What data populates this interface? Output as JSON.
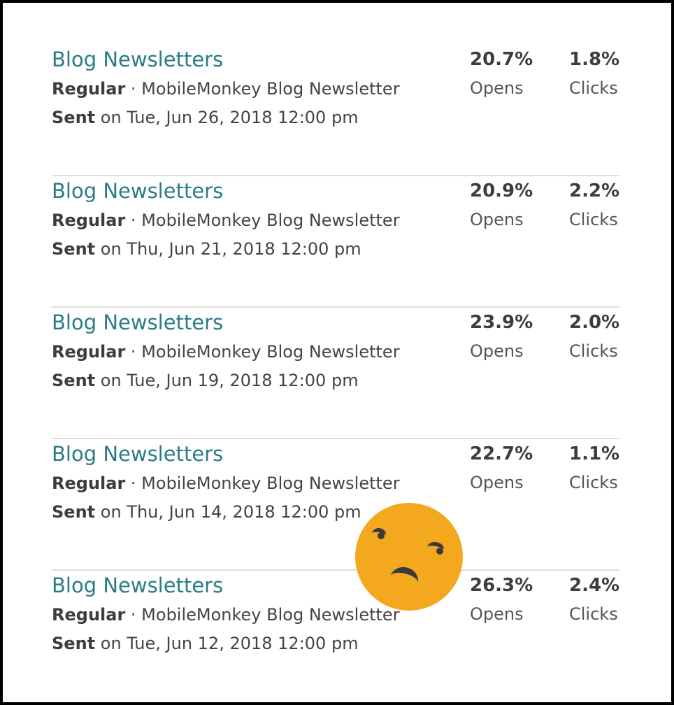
{
  "campaigns": [
    {
      "title": "Blog Newsletters",
      "type": "Regular",
      "separator": " · ",
      "list_name": "MobileMonkey Blog Newsletter",
      "sent_label": "Sent",
      "sent_date": " on Tue, Jun 26, 2018 12:00 pm",
      "opens_value": "20.7%",
      "opens_label": "Opens",
      "clicks_value": "1.8%",
      "clicks_label": "Clicks"
    },
    {
      "title": "Blog Newsletters",
      "type": "Regular",
      "separator": " · ",
      "list_name": "MobileMonkey Blog Newsletter",
      "sent_label": "Sent",
      "sent_date": " on Thu, Jun 21, 2018 12:00 pm",
      "opens_value": "20.9%",
      "opens_label": "Opens",
      "clicks_value": "2.2%",
      "clicks_label": "Clicks"
    },
    {
      "title": "Blog Newsletters",
      "type": "Regular",
      "separator": " · ",
      "list_name": "MobileMonkey Blog Newsletter",
      "sent_label": "Sent",
      "sent_date": " on Tue, Jun 19, 2018 12:00 pm",
      "opens_value": "23.9%",
      "opens_label": "Opens",
      "clicks_value": "2.0%",
      "clicks_label": "Clicks"
    },
    {
      "title": "Blog Newsletters",
      "type": "Regular",
      "separator": " · ",
      "list_name": "MobileMonkey Blog Newsletter",
      "sent_label": "Sent",
      "sent_date": " on Thu, Jun 14, 2018 12:00 pm",
      "opens_value": "22.7%",
      "opens_label": "Opens",
      "clicks_value": "1.1%",
      "clicks_label": "Clicks"
    },
    {
      "title": "Blog Newsletters",
      "type": "Regular",
      "separator": " · ",
      "list_name": "MobileMonkey Blog Newsletter",
      "sent_label": "Sent",
      "sent_date": " on Tue, Jun 12, 2018 12:00 pm",
      "opens_value": "26.3%",
      "opens_label": "Opens",
      "clicks_value": "2.4%",
      "clicks_label": "Clicks"
    }
  ],
  "overlay": {
    "icon": "frowning-face-emoji-icon",
    "color": "#f3a81d"
  },
  "colors": {
    "title_link": "#2b7b87",
    "text": "#444444",
    "divider": "#dddddd",
    "frame": "#000000"
  }
}
